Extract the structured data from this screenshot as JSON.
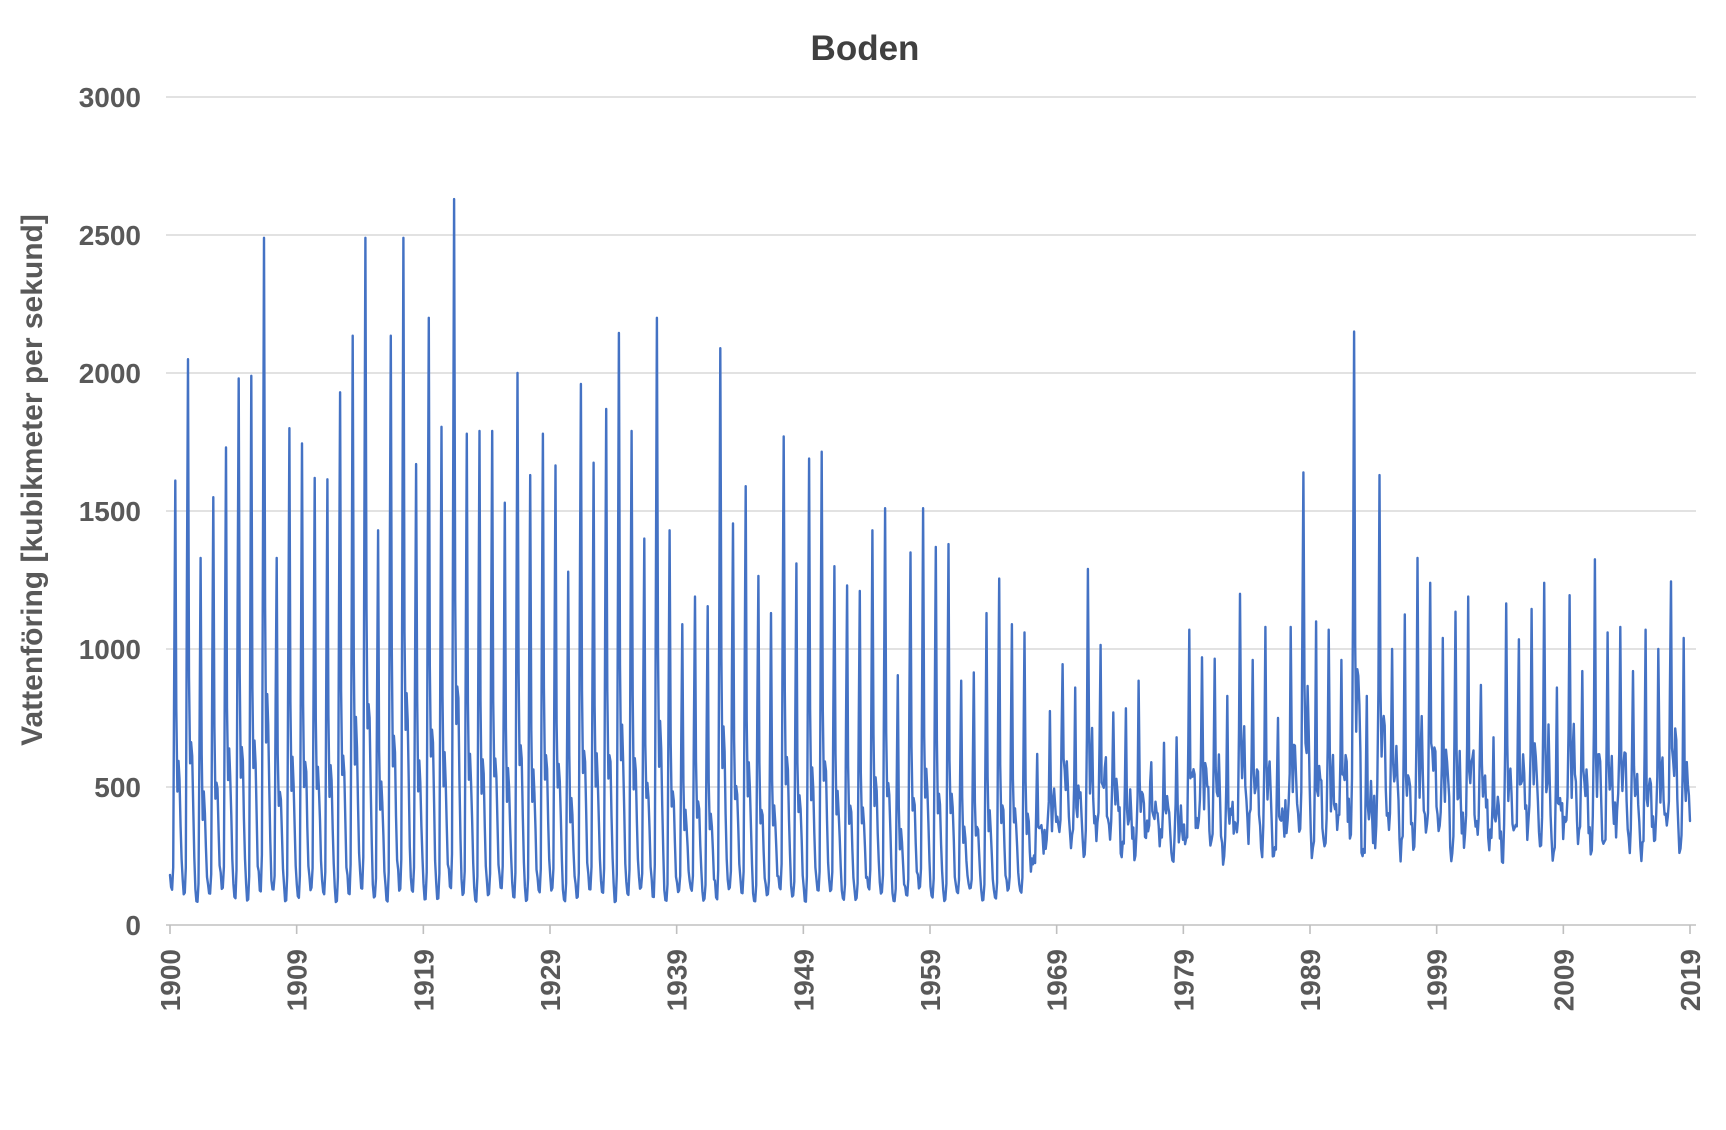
{
  "page": {
    "background_color": "#FFFFFF"
  },
  "chart_data": {
    "type": "line",
    "title": "Boden",
    "ylabel": "Vattenföring [kubikmeter per sekund]",
    "xlabel": "",
    "legend": "none",
    "grid": true,
    "line_color": "#4472C4",
    "grid_color": "#D9D9D9",
    "axis_color": "#C0C0C0",
    "tick_color": "#BFBFBF",
    "text_color": "#595959",
    "title_color": "#404040",
    "ylim": [
      0,
      3000
    ],
    "y_ticks": [
      0,
      500,
      1000,
      1500,
      2000,
      2500,
      3000
    ],
    "x_tick_labels": [
      "1900",
      "1909",
      "1919",
      "1929",
      "1939",
      "1949",
      "1959",
      "1969",
      "1979",
      "1989",
      "1999",
      "2009",
      "2019"
    ],
    "start_year": 1900,
    "end_year": 2019,
    "points_per_year": 12,
    "unit": "kubikmeter per sekund",
    "regulated_from_year": 1968,
    "seasonal_low_natural": 110,
    "seasonal_low_regulated": 280,
    "monthly_shape_natural": [
      0.03,
      0.0,
      0.0,
      0.05,
      0.55,
      1.0,
      0.42,
      0.24,
      0.3,
      0.26,
      0.16,
      0.07
    ],
    "monthly_shape_regulated": [
      0.1,
      0.02,
      0.05,
      0.12,
      0.45,
      1.0,
      0.38,
      0.25,
      0.33,
      0.4,
      0.3,
      0.15
    ],
    "annual_peaks": [
      1610,
      2050,
      1330,
      1550,
      1730,
      1980,
      1990,
      2490,
      1330,
      1800,
      1745,
      1620,
      1615,
      1930,
      2135,
      2490,
      1430,
      2135,
      2490,
      1670,
      2200,
      1805,
      2630,
      1780,
      1790,
      1790,
      1530,
      2000,
      1630,
      1780,
      1665,
      1280,
      1960,
      1675,
      1870,
      2145,
      1790,
      1400,
      2200,
      1430,
      1090,
      1190,
      1155,
      2090,
      1455,
      1590,
      1265,
      1130,
      1770,
      1310,
      1690,
      1715,
      1300,
      1230,
      1210,
      1430,
      1510,
      905,
      1350,
      1510,
      1370,
      1380,
      885,
      915,
      1130,
      1255,
      1090,
      1060,
      620,
      775,
      945,
      860,
      1290,
      1015,
      770,
      785,
      885,
      590,
      660,
      680,
      1070,
      970,
      965,
      830,
      1200,
      960,
      1080,
      750,
      1080,
      1640,
      1100,
      1070,
      960,
      2150,
      830,
      1630,
      1000,
      1125,
      1330,
      1240,
      1040,
      1135,
      1190,
      870,
      680,
      1165,
      1035,
      1145,
      1240,
      860,
      1195,
      920,
      1325,
      1060,
      1080,
      920,
      1070,
      1000,
      1245,
      1040
    ]
  }
}
